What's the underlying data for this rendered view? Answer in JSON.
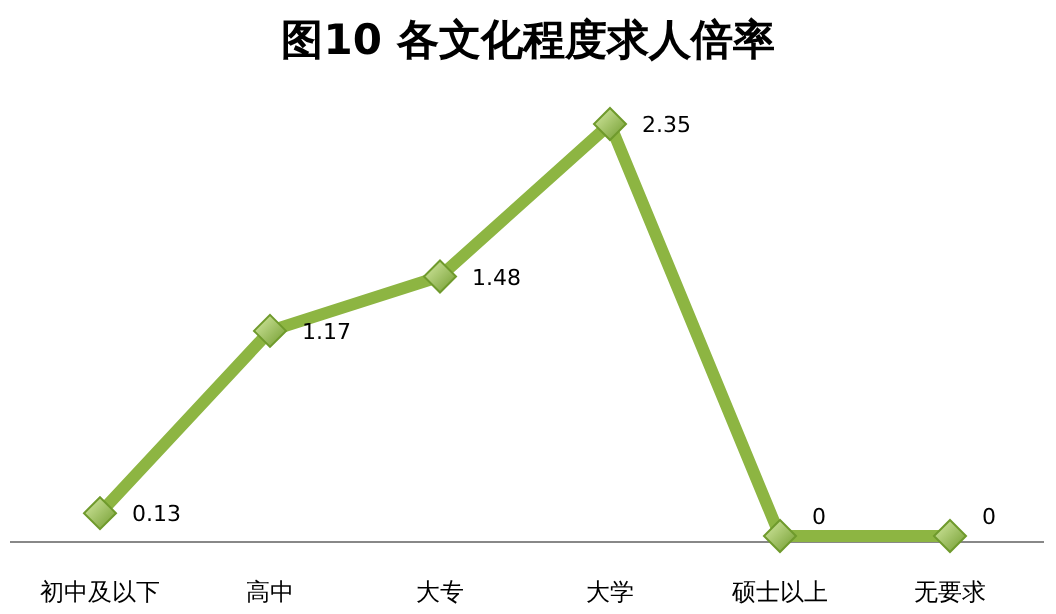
{
  "chart_data": {
    "type": "line",
    "title": "图10 各文化程度求人倍率",
    "categories": [
      "初中及以下",
      "高中",
      "大专",
      "大学",
      "硕士以上",
      "无要求"
    ],
    "values": [
      0.13,
      1.17,
      1.48,
      2.35,
      0,
      0
    ],
    "color": "#8db542",
    "marker": "diamond",
    "data_labels": true
  }
}
